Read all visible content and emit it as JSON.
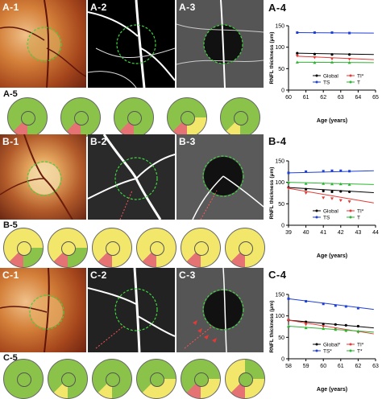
{
  "rows": [
    {
      "id": "A",
      "labels": {
        "p1": "A-1",
        "p2": "A-2",
        "p3": "A-3",
        "p4": "A-4",
        "p5": "A-5"
      }
    },
    {
      "id": "B",
      "labels": {
        "p1": "B-1",
        "p2": "B-2",
        "p3": "B-3",
        "p4": "B-4",
        "p5": "B-5"
      }
    },
    {
      "id": "C",
      "labels": {
        "p1": "C-1",
        "p2": "C-2",
        "p3": "C-3",
        "p4": "C-4",
        "p5": "C-5"
      }
    }
  ],
  "colors": {
    "global": "#000000",
    "ti": "#e53935",
    "ts": "#1e3fd6",
    "t": "#2bb530",
    "disc_green": "#8bc34a",
    "disc_yellow": "#f2e76a",
    "disc_red": "#e57373",
    "dashed_circle": "#3fd43f"
  },
  "chart_data": [
    {
      "type": "scatter",
      "title": "",
      "xlabel": "Age (years)",
      "ylabel": "RNFL thickness (μm)",
      "xlim": [
        60,
        65
      ],
      "ylim": [
        0,
        150
      ],
      "xticks": [
        60,
        61,
        62,
        63,
        64,
        65
      ],
      "yticks": [
        0,
        50,
        100,
        150
      ],
      "legend": "bottom",
      "series": [
        {
          "name": "Global",
          "color_key": "global",
          "x": [
            60.5,
            61.5,
            62.5,
            63.5
          ],
          "y": [
            86,
            84,
            83,
            83
          ],
          "fit": [
            86,
            83
          ]
        },
        {
          "name": "TI*",
          "color_key": "ti",
          "x": [
            60.5,
            61.5,
            62.5,
            63.5
          ],
          "y": [
            80,
            76,
            73,
            72
          ],
          "fit": [
            79,
            71
          ]
        },
        {
          "name": "TS",
          "color_key": "ts",
          "x": [
            60.5,
            61.5,
            62.5,
            63.5
          ],
          "y": [
            134,
            134,
            134,
            133
          ],
          "fit": [
            134,
            133
          ]
        },
        {
          "name": "T",
          "color_key": "t",
          "x": [
            60.5,
            61.5,
            62.5,
            63.5
          ],
          "y": [
            65,
            64,
            65,
            64
          ],
          "fit": [
            65,
            64
          ]
        }
      ]
    },
    {
      "type": "scatter",
      "title": "",
      "xlabel": "Age (years)",
      "ylabel": "RNFL thickness (μm)",
      "xlim": [
        39,
        44
      ],
      "ylim": [
        0,
        150
      ],
      "xticks": [
        39,
        40,
        41,
        42,
        43,
        44
      ],
      "yticks": [
        0,
        50,
        100,
        150
      ],
      "legend": "bottom",
      "series": [
        {
          "name": "Global",
          "color_key": "global",
          "x": [
            39,
            40,
            41,
            41.5,
            42,
            42.5
          ],
          "y": [
            88,
            84,
            80,
            78,
            79,
            78
          ],
          "fit": [
            88,
            76
          ]
        },
        {
          "name": "TI*",
          "color_key": "ti",
          "x": [
            39,
            40,
            41,
            41.5,
            42,
            42.5
          ],
          "y": [
            86,
            75,
            64,
            62,
            58,
            55
          ],
          "fit": [
            86,
            52
          ]
        },
        {
          "name": "TS",
          "color_key": "ts",
          "x": [
            39,
            40,
            41,
            41.5,
            42,
            42.5
          ],
          "y": [
            122,
            125,
            126,
            127,
            127,
            126
          ],
          "fit": [
            122,
            127
          ]
        },
        {
          "name": "T",
          "color_key": "t",
          "x": [
            39,
            40,
            41,
            41.5,
            42,
            42.5
          ],
          "y": [
            100,
            97,
            97,
            96,
            96,
            95
          ],
          "fit": [
            100,
            95
          ]
        }
      ]
    },
    {
      "type": "scatter",
      "title": "",
      "xlabel": "Age (years)",
      "ylabel": "RNFL thickness (μm)",
      "xlim": [
        58,
        63
      ],
      "ylim": [
        0,
        150
      ],
      "xticks": [
        58,
        59,
        60,
        61,
        62,
        63
      ],
      "yticks": [
        0,
        50,
        100,
        150
      ],
      "legend": "bottom",
      "series": [
        {
          "name": "Global*",
          "color_key": "global",
          "x": [
            58,
            59,
            60,
            60.7,
            61.3,
            62
          ],
          "y": [
            90,
            86,
            81,
            80,
            78,
            76
          ],
          "fit": [
            90,
            72
          ]
        },
        {
          "name": "TI*",
          "color_key": "ti",
          "x": [
            58,
            59,
            60,
            60.7,
            61.3,
            62
          ],
          "y": [
            90,
            80,
            75,
            70,
            65,
            62
          ],
          "fit": [
            90,
            58
          ]
        },
        {
          "name": "TS*",
          "color_key": "ts",
          "x": [
            58,
            59,
            60,
            60.7,
            61.3,
            62
          ],
          "y": [
            140,
            134,
            128,
            124,
            122,
            118
          ],
          "fit": [
            140,
            115
          ]
        },
        {
          "name": "T*",
          "color_key": "t",
          "x": [
            58,
            59,
            60,
            60.7,
            61.3,
            62
          ],
          "y": [
            76,
            72,
            70,
            68,
            66,
            64
          ],
          "fit": [
            76,
            62
          ]
        }
      ]
    }
  ]
}
